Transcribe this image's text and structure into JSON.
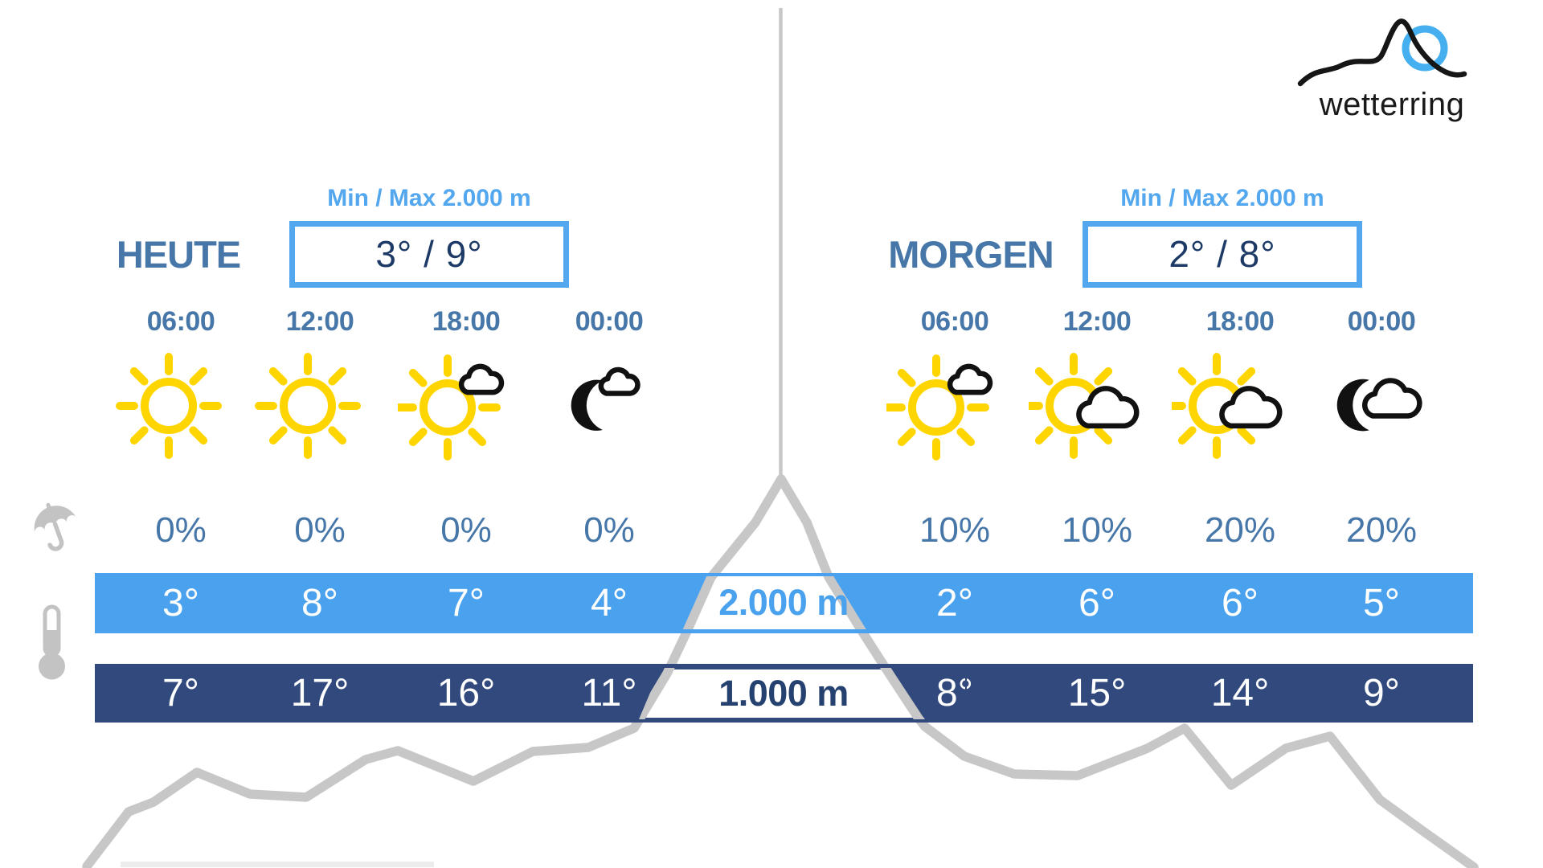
{
  "brand": {
    "name": "wetterring",
    "logo_icon": "mountain-sun-logo-icon"
  },
  "days": [
    {
      "label": "HEUTE",
      "minmax_label": "Min / Max 2.000 m",
      "minmax_value": "3° / 9°",
      "slots": [
        {
          "time": "06:00",
          "icon": "sun-icon",
          "pop": "0%",
          "temp_2000": "3°",
          "temp_1000": "7°"
        },
        {
          "time": "12:00",
          "icon": "sun-icon",
          "pop": "0%",
          "temp_2000": "8°",
          "temp_1000": "17°"
        },
        {
          "time": "18:00",
          "icon": "sun-small-cloud-icon",
          "pop": "0%",
          "temp_2000": "7°",
          "temp_1000": "16°"
        },
        {
          "time": "00:00",
          "icon": "moon-small-cloud-icon",
          "pop": "0%",
          "temp_2000": "4°",
          "temp_1000": "11°"
        }
      ]
    },
    {
      "label": "MORGEN",
      "minmax_label": "Min / Max 2.000 m",
      "minmax_value": "2° / 8°",
      "slots": [
        {
          "time": "06:00",
          "icon": "sun-small-cloud-icon",
          "pop": "10%",
          "temp_2000": "2°",
          "temp_1000": "8°"
        },
        {
          "time": "12:00",
          "icon": "sun-cloud-icon",
          "pop": "10%",
          "temp_2000": "6°",
          "temp_1000": "15°"
        },
        {
          "time": "18:00",
          "icon": "sun-cloud-icon",
          "pop": "20%",
          "temp_2000": "6°",
          "temp_1000": "14°"
        },
        {
          "time": "00:00",
          "icon": "moon-cloud-icon",
          "pop": "20%",
          "temp_2000": "5°",
          "temp_1000": "9°"
        }
      ]
    }
  ],
  "elevation_bands": [
    {
      "label": "2.000 m"
    },
    {
      "label": "1.000 m"
    }
  ],
  "row_icons": {
    "precipitation": "umbrella-icon",
    "temperature": "thermometer-icon"
  },
  "colors": {
    "accent_light_blue": "#4AA2EE",
    "box_border_blue": "#52A7EE",
    "steel_blue": "#4677A8",
    "navy": "#31497C",
    "deep_navy": "#1D3A66",
    "label_navy": "#24416F",
    "mountain_gray": "#C7C7C7",
    "icon_gray": "#C3C3C3",
    "sun_yellow": "#FFD500",
    "icon_black": "#111111"
  }
}
